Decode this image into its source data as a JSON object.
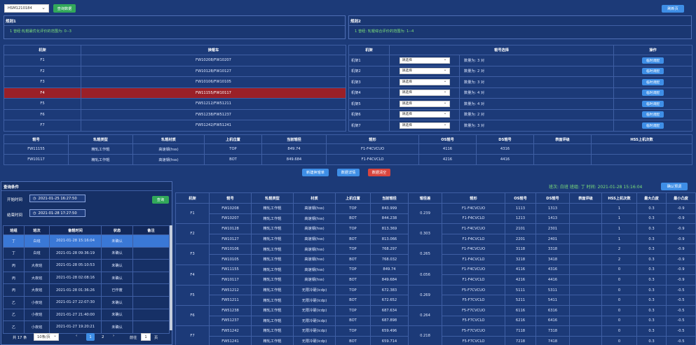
{
  "toolbar": {
    "mill_select": "HSM1210184",
    "query_btn": "查询数据",
    "refresh_btn": "刷新页"
  },
  "rule1": {
    "title": "规则1",
    "text": "1 曾经:轧辊最优化评价的范围为: 0--3"
  },
  "rule2": {
    "title": "规则2",
    "text": "1 曾经: 轧辊综合评价的范围为: 1--4"
  },
  "stand_table": {
    "headers": [
      "机架",
      "换辊车"
    ],
    "rows": [
      [
        "F1",
        "FW10208/FW10207"
      ],
      [
        "F2",
        "FW10128/FW10127"
      ],
      [
        "F3",
        "FW10106/FW10105"
      ],
      [
        "F4",
        "FW11155/FW10117"
      ],
      [
        "F5",
        "FW51212/FW51211"
      ],
      [
        "F6",
        "FW51238/FW51237"
      ],
      [
        "F7",
        "FW51242/FW51241"
      ]
    ]
  },
  "roll_select_table": {
    "headers": [
      "机架",
      "辊号选择",
      "操作"
    ],
    "rows": [
      {
        "stand": "机架1",
        "select": "请选择",
        "count": "数量为: 3 对",
        "op": "临时调配"
      },
      {
        "stand": "机架2",
        "select": "请选择",
        "count": "数量为: 2 对",
        "op": "临时调配"
      },
      {
        "stand": "机架3",
        "select": "请选择",
        "count": "数量为: 3 对",
        "op": "临时调配"
      },
      {
        "stand": "机架4",
        "select": "请选择",
        "count": "数量为: 4 对",
        "op": "临时调配"
      },
      {
        "stand": "机架5",
        "select": "请选择",
        "count": "数量为: 4 对",
        "op": "临时调配"
      },
      {
        "stand": "机架6",
        "select": "请选择",
        "count": "数量为: 2 对",
        "op": "临时调配"
      },
      {
        "stand": "机架7",
        "select": "请选择",
        "count": "数量为: 3 对",
        "op": "临时调配"
      }
    ]
  },
  "detail_table": {
    "headers": [
      "辊号",
      "轧辊类型",
      "轧辊材质",
      "上机位置",
      "当前辊径",
      "辊形",
      "OS辊号",
      "DS辊号",
      "表面评级",
      "HSS上机次数"
    ],
    "rows": [
      [
        "FW11155",
        "精轧工作辊",
        "高速钢(hss)",
        "TOP",
        "849.74",
        "F1-F4CVCUO",
        "4116",
        "4316",
        "",
        ""
      ],
      [
        "FW10117",
        "精轧工作辊",
        "高速钢(hss)",
        "BOT",
        "849.684",
        "F1-F4CVCLO",
        "4216",
        "4416",
        "",
        ""
      ]
    ]
  },
  "mid_buttons": {
    "new": "新建换辊单",
    "detail": "数据详情",
    "clear": "数据清空"
  },
  "query": {
    "title": "查询条件",
    "start_label": "开始时间",
    "start_value": "2021-01-25 16:27:50",
    "end_label": "结束时间",
    "end_value": "2021-01-28 17:27:50",
    "search_btn": "查询"
  },
  "shift_table": {
    "headers": [
      "班组",
      "班次",
      "备辊时间",
      "状态",
      "备注"
    ],
    "rows": [
      [
        "丁",
        "白班",
        "2021-01-28 15:16:04",
        "未确认",
        ""
      ],
      [
        "丁",
        "白班",
        "2021-01-28 09:36:19",
        "未确认",
        ""
      ],
      [
        "丙",
        "大夜班",
        "2021-01-28 05:10:53",
        "未确认",
        ""
      ],
      [
        "丙",
        "大夜班",
        "2021-01-28 02:08:16",
        "未确认",
        ""
      ],
      [
        "丙",
        "大夜班",
        "2021-01-28 01:36:26",
        "已作废",
        ""
      ],
      [
        "乙",
        "小夜班",
        "2021-01-27 22:07:30",
        "未确认",
        ""
      ],
      [
        "乙",
        "小夜班",
        "2021-01-27 21:40:00",
        "未确认",
        ""
      ],
      [
        "乙",
        "小夜班",
        "2021-01-27 19:20:21",
        "未确认",
        ""
      ]
    ]
  },
  "pager": {
    "total": "共 17 条",
    "size": "10条/页",
    "p1": "1",
    "p2": "2",
    "goto": "前往",
    "page_input": "1",
    "page_unit": "页"
  },
  "right_header": {
    "info": "班次: 白班  班组: 丁  时间: 2021-01-28 15:16:04",
    "confirm_btn": "确认预调"
  },
  "main_table": {
    "headers": [
      "机架",
      "辊号",
      "轧辊类型",
      "材质",
      "上机位置",
      "当前辊径",
      "辊径差",
      "辊形",
      "OS辊号",
      "DS辊号",
      "表面评级",
      "HSS上机次数",
      "最大凸度",
      "最小凸度"
    ],
    "groups": [
      {
        "stand": "F1",
        "diff": "0.239",
        "rows": [
          [
            "FW10208",
            "精轧工作辊",
            "高速钢(hss)",
            "TOP",
            "843.999",
            "F1-F4CVCUO",
            "1113",
            "1313",
            "",
            "1",
            "0.3",
            "-0.9"
          ],
          [
            "FW10207",
            "精轧工作辊",
            "高速钢(hss)",
            "BOT",
            "844.238",
            "F1-F4CVCLO",
            "1213",
            "1413",
            "",
            "1",
            "0.3",
            "-0.9"
          ]
        ]
      },
      {
        "stand": "F2",
        "diff": "0.303",
        "rows": [
          [
            "FW10128",
            "精轧工作辊",
            "高速钢(hss)",
            "TOP",
            "813.369",
            "F1-F4CVCUO",
            "2101",
            "2301",
            "",
            "1",
            "0.3",
            "-0.9"
          ],
          [
            "FW10127",
            "精轧工作辊",
            "高速钢(hss)",
            "BOT",
            "813.066",
            "F1-F4CVCLO",
            "2201",
            "2401",
            "",
            "1",
            "0.3",
            "-0.9"
          ]
        ]
      },
      {
        "stand": "F3",
        "diff": "0.265",
        "rows": [
          [
            "FW10106",
            "精轧工作辊",
            "高速钢(hss)",
            "TOP",
            "768.297",
            "F1-F4CVCUO",
            "3118",
            "3318",
            "",
            "2",
            "0.3",
            "-0.9"
          ],
          [
            "FW10105",
            "精轧工作辊",
            "高速钢(hss)",
            "BOT",
            "768.032",
            "F1-F4CVCLO",
            "3218",
            "3418",
            "",
            "2",
            "0.3",
            "-0.9"
          ]
        ]
      },
      {
        "stand": "F4",
        "diff": "0.056",
        "rows": [
          [
            "FW11155",
            "精轧工作辊",
            "高速钢(hss)",
            "TOP",
            "849.74",
            "F1-F4CVCUO",
            "4116",
            "4316",
            "",
            "0",
            "0.3",
            "-0.9"
          ],
          [
            "FW10117",
            "精轧工作辊",
            "高速钢(hss)",
            "BOT",
            "849.684",
            "F1-F4CVCLO",
            "4216",
            "4416",
            "",
            "0",
            "0.3",
            "-0.9"
          ]
        ]
      },
      {
        "stand": "F5",
        "diff": "0.269",
        "rows": [
          [
            "FW51212",
            "精轧工作辊",
            "无限冷硬(icdp)",
            "TOP",
            "672.383",
            "F5-F7CVCUO",
            "5111",
            "5311",
            "",
            "0",
            "0.3",
            "-0.5"
          ],
          [
            "FW51211",
            "精轧工作辊",
            "无限冷硬(icdp)",
            "BOT",
            "672.652",
            "F5-F7CVCLO",
            "5211",
            "5411",
            "",
            "0",
            "0.3",
            "-0.5"
          ]
        ]
      },
      {
        "stand": "F6",
        "diff": "0.264",
        "rows": [
          [
            "FW51238",
            "精轧工作辊",
            "无限冷硬(icdp)",
            "TOP",
            "687.634",
            "F5-F7CVCUO",
            "6116",
            "6316",
            "",
            "0",
            "0.3",
            "-0.5"
          ],
          [
            "FW51237",
            "精轧工作辊",
            "无限冷硬(icdp)",
            "BOT",
            "687.898",
            "F5-F7CVCLO",
            "6216",
            "6416",
            "",
            "0",
            "0.3",
            "-0.5"
          ]
        ]
      },
      {
        "stand": "F7",
        "diff": "0.218",
        "rows": [
          [
            "FW51242",
            "精轧工作辊",
            "无限冷硬(icdp)",
            "TOP",
            "659.496",
            "F5-F7CVCUO",
            "7118",
            "7318",
            "",
            "0",
            "0.3",
            "-0.5"
          ],
          [
            "FW51241",
            "精轧工作辊",
            "无限冷硬(icdp)",
            "BOT",
            "659.714",
            "F5-F7CVCLO",
            "7218",
            "7418",
            "",
            "0",
            "0.3",
            "-0.5"
          ]
        ]
      }
    ]
  }
}
